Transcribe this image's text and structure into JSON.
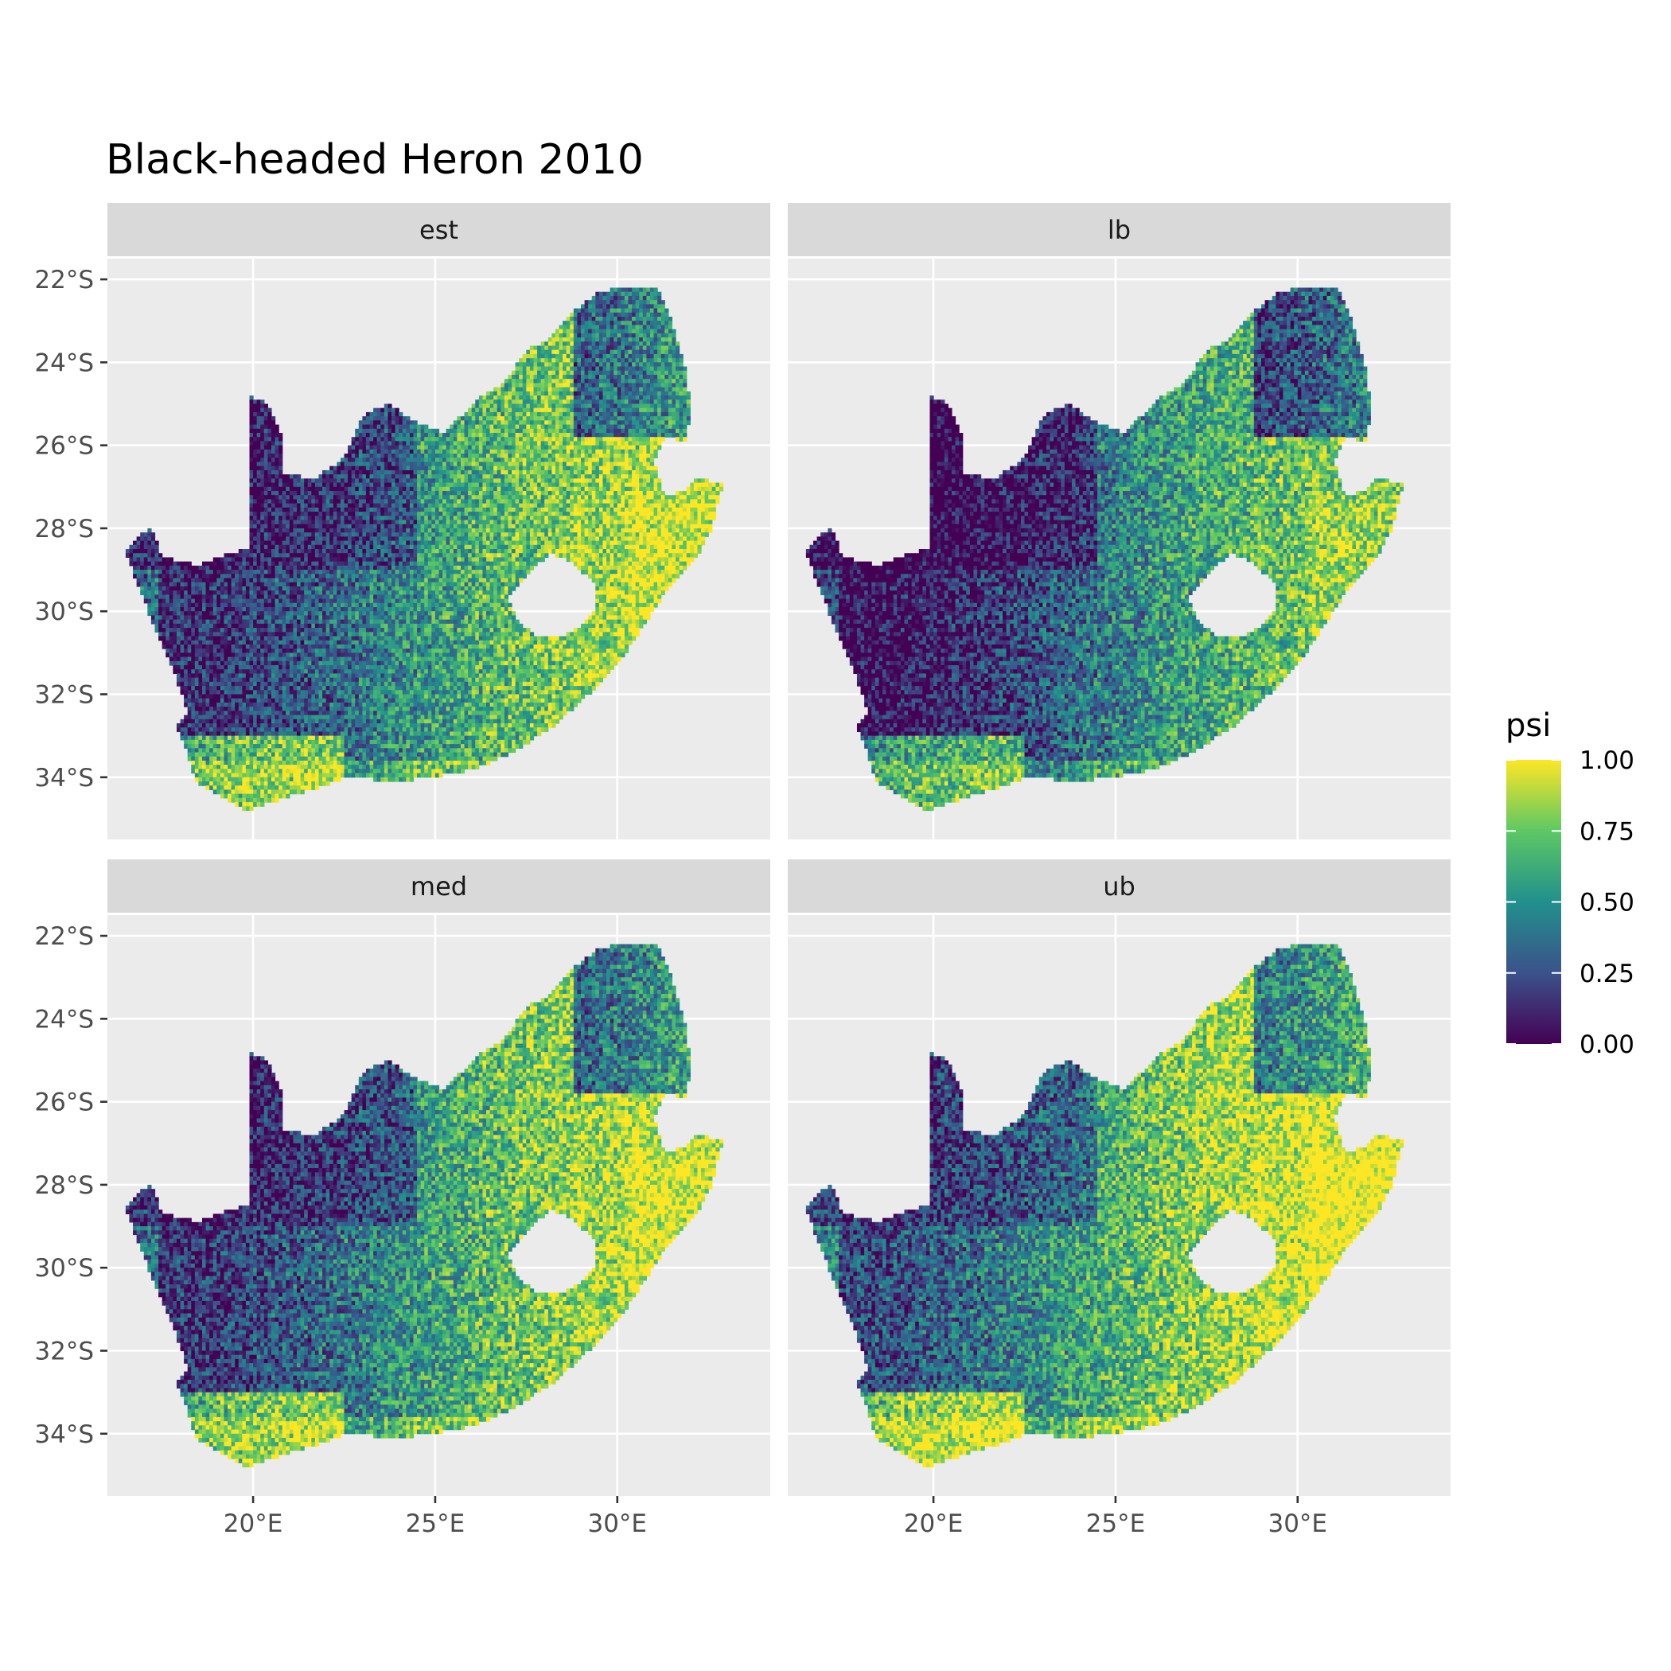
{
  "title": "Black-headed Heron 2010",
  "panels": [
    {
      "label": "est",
      "tone": 0.0
    },
    {
      "label": "lb",
      "tone": -0.12
    },
    {
      "label": "med",
      "tone": 0.02
    },
    {
      "label": "ub",
      "tone": 0.1
    }
  ],
  "x_axis": {
    "range": [
      16.0,
      34.2
    ],
    "ticks": [
      {
        "value": 20,
        "label": "20°E"
      },
      {
        "value": 25,
        "label": "25°E"
      },
      {
        "value": 30,
        "label": "30°E"
      }
    ]
  },
  "y_axis": {
    "range": [
      -35.5,
      -21.5
    ],
    "ticks": [
      {
        "value": -22,
        "label": "22°S"
      },
      {
        "value": -24,
        "label": "24°S"
      },
      {
        "value": -26,
        "label": "26°S"
      },
      {
        "value": -28,
        "label": "28°S"
      },
      {
        "value": -30,
        "label": "30°S"
      },
      {
        "value": -32,
        "label": "32°S"
      },
      {
        "value": -34,
        "label": "34°S"
      }
    ]
  },
  "legend": {
    "title": "psi",
    "position": "right",
    "ticks": [
      {
        "value": 1.0,
        "label": "1.00"
      },
      {
        "value": 0.75,
        "label": "0.75"
      },
      {
        "value": 0.5,
        "label": "0.50"
      },
      {
        "value": 0.25,
        "label": "0.25"
      },
      {
        "value": 0.0,
        "label": "0.00"
      }
    ],
    "colors": [
      "#440154",
      "#3b528b",
      "#21908c",
      "#5dc863",
      "#fde725"
    ]
  },
  "colors": {
    "panel_background": "#ebebeb",
    "strip_background": "#d9d9d9",
    "grid": "#ffffff"
  },
  "map": {
    "outline": [
      [
        16.5,
        -28.6
      ],
      [
        16.8,
        -28.2
      ],
      [
        17.2,
        -28.0
      ],
      [
        17.5,
        -28.7
      ],
      [
        18.5,
        -28.9
      ],
      [
        19.3,
        -28.6
      ],
      [
        19.9,
        -28.5
      ],
      [
        19.9,
        -24.8
      ],
      [
        20.4,
        -25.0
      ],
      [
        20.8,
        -25.8
      ],
      [
        20.8,
        -26.7
      ],
      [
        21.7,
        -26.8
      ],
      [
        22.5,
        -26.3
      ],
      [
        23.0,
        -25.3
      ],
      [
        23.7,
        -25.0
      ],
      [
        24.6,
        -25.5
      ],
      [
        25.2,
        -25.7
      ],
      [
        25.7,
        -25.3
      ],
      [
        26.3,
        -24.8
      ],
      [
        26.9,
        -24.5
      ],
      [
        27.5,
        -23.7
      ],
      [
        28.0,
        -23.5
      ],
      [
        28.9,
        -22.7
      ],
      [
        29.5,
        -22.3
      ],
      [
        30.2,
        -22.2
      ],
      [
        31.1,
        -22.2
      ],
      [
        31.5,
        -23.0
      ],
      [
        31.9,
        -24.3
      ],
      [
        32.0,
        -25.1
      ],
      [
        31.9,
        -25.9
      ],
      [
        31.3,
        -25.8
      ],
      [
        31.0,
        -26.4
      ],
      [
        31.3,
        -27.2
      ],
      [
        31.9,
        -27.1
      ],
      [
        32.1,
        -26.8
      ],
      [
        32.9,
        -26.9
      ],
      [
        32.6,
        -28.0
      ],
      [
        32.1,
        -28.8
      ],
      [
        31.5,
        -29.3
      ],
      [
        30.6,
        -30.5
      ],
      [
        30.0,
        -31.3
      ],
      [
        29.2,
        -32.0
      ],
      [
        28.2,
        -32.8
      ],
      [
        27.3,
        -33.3
      ],
      [
        26.4,
        -33.7
      ],
      [
        25.6,
        -33.9
      ],
      [
        24.9,
        -34.0
      ],
      [
        24.0,
        -34.1
      ],
      [
        22.6,
        -34.0
      ],
      [
        21.6,
        -34.3
      ],
      [
        20.5,
        -34.6
      ],
      [
        19.8,
        -34.8
      ],
      [
        19.2,
        -34.5
      ],
      [
        18.8,
        -34.3
      ],
      [
        18.4,
        -34.1
      ],
      [
        18.2,
        -33.4
      ],
      [
        17.9,
        -32.8
      ],
      [
        18.2,
        -32.4
      ],
      [
        17.8,
        -31.4
      ],
      [
        17.3,
        -30.4
      ],
      [
        16.9,
        -29.5
      ],
      [
        16.5,
        -28.6
      ]
    ],
    "hole": [
      [
        27.0,
        -29.7
      ],
      [
        27.6,
        -29.0
      ],
      [
        28.2,
        -28.6
      ],
      [
        28.7,
        -28.8
      ],
      [
        29.4,
        -29.3
      ],
      [
        29.4,
        -29.9
      ],
      [
        29.1,
        -30.3
      ],
      [
        28.5,
        -30.6
      ],
      [
        27.8,
        -30.6
      ],
      [
        27.3,
        -30.3
      ],
      [
        27.0,
        -29.7
      ]
    ]
  }
}
